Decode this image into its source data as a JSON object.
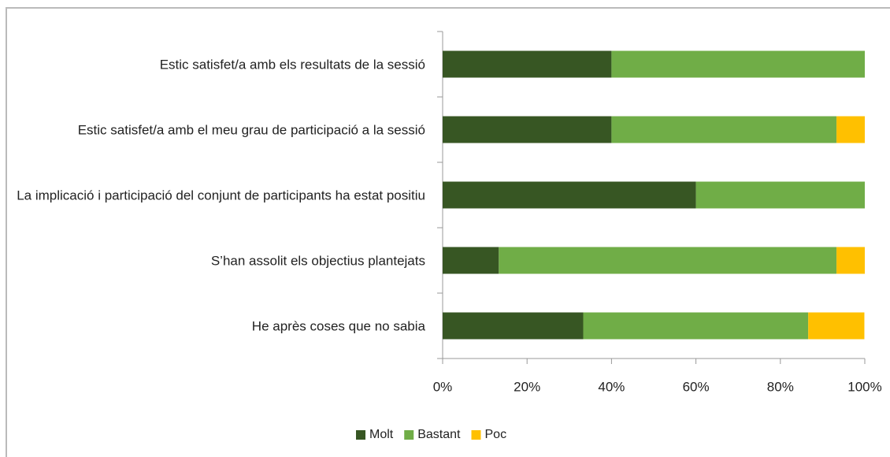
{
  "chart_data": {
    "type": "stacked_barh",
    "categories": [
      "Estic satisfet/a amb els resultats de la sessió",
      "Estic satisfet/a amb el meu grau de participació a la sessió",
      "La implicació i participació del conjunt de participants ha estat positiu",
      "S’han assolit els objectius plantejats",
      "He après coses que no sabia"
    ],
    "series": [
      {
        "name": "Molt",
        "color": "#375623",
        "values": [
          40,
          40,
          60,
          13.3,
          33.3
        ]
      },
      {
        "name": "Bastant",
        "color": "#70ad47",
        "values": [
          60,
          53.3,
          40,
          80,
          53.3
        ]
      },
      {
        "name": "Poc",
        "color": "#ffc000",
        "values": [
          0,
          6.7,
          0,
          6.7,
          13.3
        ]
      }
    ],
    "xlim": [
      0,
      100
    ],
    "xticks": [
      {
        "value": 0,
        "label": "0%"
      },
      {
        "value": 20,
        "label": "20%"
      },
      {
        "value": 40,
        "label": "40%"
      },
      {
        "value": 60,
        "label": "60%"
      },
      {
        "value": 80,
        "label": "80%"
      },
      {
        "value": 100,
        "label": "100%"
      }
    ],
    "grid": false,
    "legend": "bottom"
  }
}
